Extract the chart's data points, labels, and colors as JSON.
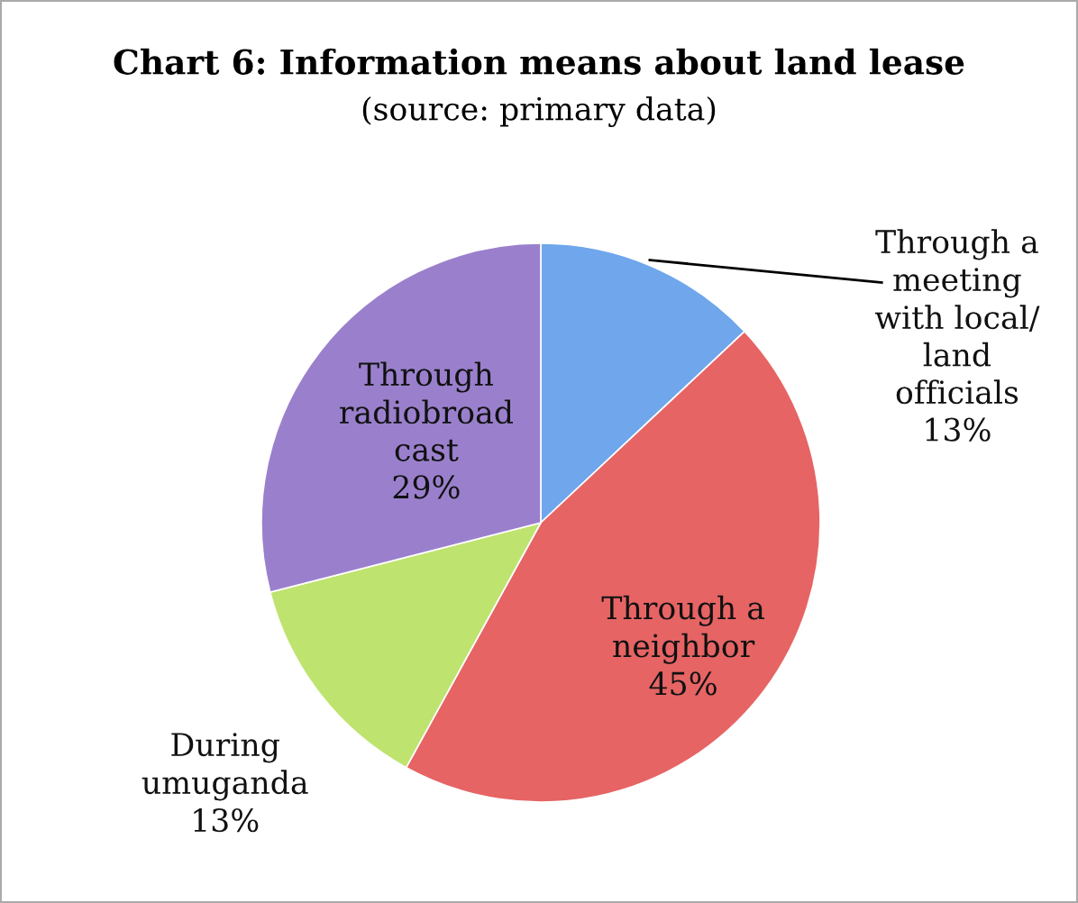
{
  "chart_data": {
    "type": "pie",
    "title": "Chart 6: Information means about land lease",
    "subtitle": "(source: primary data)",
    "categories": [
      "Through a\nmeeting\nwith local/\nland\nofficials",
      "Through a\nneighbor",
      "During\numuganda",
      "Through\nradiobroad\ncast"
    ],
    "values": [
      13,
      45,
      13,
      29
    ],
    "value_labels": [
      "13%",
      "45%",
      "13%",
      "29%"
    ],
    "colors": [
      "#6fa6ec",
      "#e66464",
      "#bfe36f",
      "#9a80cc"
    ]
  }
}
